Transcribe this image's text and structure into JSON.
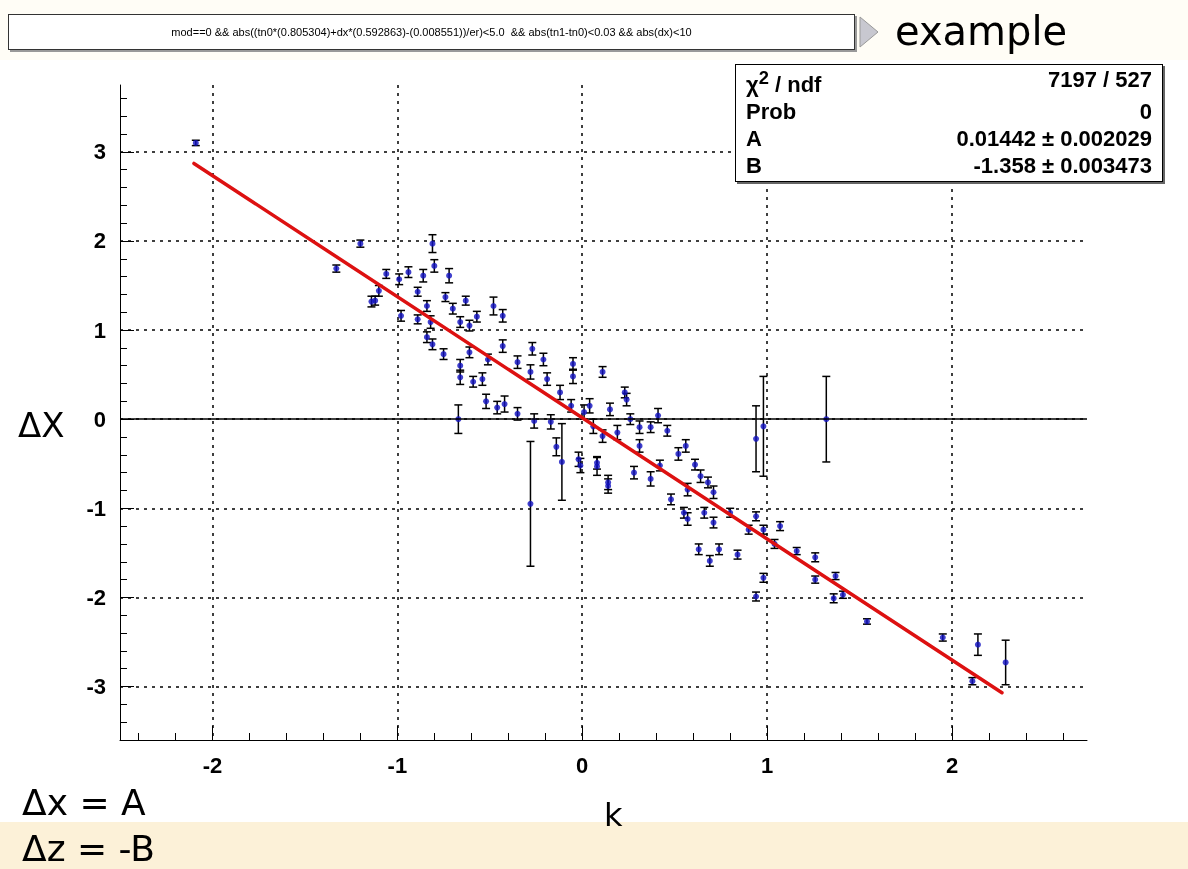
{
  "chart_data": {
    "type": "scatter",
    "title": "mod==0 && abs((tn0*(0.805304)+dx*(0.592863)-(0.008551))/er)<5.0  && abs(tn1-tn0)<0.03 && abs(dx)<10",
    "xlabel": "k",
    "ylabel": "ΔX",
    "annotations": [
      "example",
      "χ$^{2}$ / ndf",
      "7197 / 527",
      "Prob",
      "0",
      "A",
      "0.01442 ± 0.002029",
      "B",
      "-1.358 ± 0.003473",
      "Δx = A",
      "Δz = -B"
    ],
    "xlim": [
      -2.5,
      2.73
    ],
    "xticks": [
      -2,
      -1,
      0,
      1,
      2
    ],
    "ylim": [
      -3.6,
      3.75
    ],
    "yticks": [
      -3,
      -2,
      -1,
      0,
      1,
      2,
      3
    ],
    "grid": true,
    "ref_lines": [
      {
        "axis": "y",
        "value": 0,
        "color": "#000000",
        "line_style": "solid"
      }
    ],
    "series": [
      {
        "color": "#1010c0",
        "marker": "circle",
        "x": [
          -2.09,
          -1.33,
          -1.2,
          -1.14,
          -1.12,
          -1.1,
          -1.06,
          -0.99,
          -0.94,
          -0.86,
          -0.81,
          -0.8,
          -0.72,
          -0.98,
          -0.89,
          -0.89,
          -0.84,
          -0.82,
          -0.84,
          -0.81,
          -0.74,
          -0.7,
          -0.75,
          -0.66,
          -0.63,
          -0.48,
          -0.43,
          -0.57,
          -0.61,
          -0.66,
          -0.66,
          -0.59,
          -0.54,
          -0.52,
          -0.46,
          -0.42,
          -0.35,
          -0.26,
          -0.27,
          -0.17,
          -0.14,
          -0.02,
          0.08,
          0.14,
          -0.61,
          -0.51,
          -0.43,
          -0.35,
          -0.28,
          -0.19,
          -0.12,
          -0.06,
          0.01,
          0.06,
          0.11,
          -0.05,
          -0.21,
          -0.67,
          -0.28,
          -0.11,
          -0.05,
          0.11,
          0.23,
          0.24,
          0.26,
          0.31,
          0.37,
          0.41,
          0.46,
          0.52,
          0.56,
          0.61,
          0.64,
          0.42,
          0.31,
          0.37,
          0.28,
          0.14,
          0.08,
          -0.01,
          0.04,
          0.15,
          0.19,
          0.68,
          0.71,
          0.57,
          0.94,
          0.98,
          1.32,
          0.48,
          0.55,
          0.57,
          0.63,
          0.69,
          0.74,
          0.84,
          0.66,
          0.71,
          0.8,
          0.9,
          0.94,
          0.98,
          1.07,
          1.04,
          1.16,
          1.26,
          0.98,
          0.94,
          1.26,
          1.37,
          1.41,
          1.54,
          1.95,
          2.14,
          2.11,
          2.29,
          1.36
        ],
        "values": [
          3.1,
          1.69,
          1.97,
          1.32,
          1.33,
          1.44,
          1.63,
          1.57,
          1.65,
          1.61,
          1.97,
          1.72,
          1.61,
          1.16,
          1.43,
          1.12,
          1.27,
          1.09,
          0.92,
          0.84,
          1.37,
          1.24,
          0.73,
          1.09,
          1.33,
          1.27,
          1.16,
          1.15,
          1.05,
          0.6,
          0.47,
          0.42,
          0.45,
          0.2,
          0.13,
          0.17,
          0.06,
          -0.02,
          0.79,
          -0.03,
          -0.31,
          -0.45,
          -0.53,
          -0.71,
          0.75,
          0.67,
          0.82,
          0.64,
          0.53,
          0.45,
          0.3,
          0.15,
          0.08,
          -0.08,
          -0.19,
          0.48,
          0.67,
          0,
          -0.95,
          -0.48,
          0.62,
          0.53,
          0.3,
          0.22,
          0,
          -0.09,
          -0.09,
          0.04,
          -0.13,
          -0.39,
          -0.3,
          -0.51,
          -0.64,
          -0.52,
          -0.3,
          -0.67,
          -0.6,
          -0.75,
          -0.49,
          -0.52,
          0.15,
          0.11,
          -0.15,
          -0.71,
          -0.82,
          -0.79,
          -0.22,
          -0.08,
          0,
          -0.9,
          -1.05,
          -1.12,
          -1.46,
          -1.59,
          -1.46,
          -1.52,
          -1.05,
          -1.16,
          -1.05,
          -1.24,
          -1.09,
          -1.24,
          -1.2,
          -1.4,
          -1.48,
          -1.55,
          -1.78,
          -1.99,
          -1.8,
          -1.76,
          -1.97,
          -2.27,
          -2.45,
          -2.53,
          -2.94,
          -2.73,
          -2.01
        ],
        "errors": [
          0.03,
          0.04,
          0.04,
          0.06,
          0.05,
          0.06,
          0.05,
          0.06,
          0.06,
          0.07,
          0.1,
          0.07,
          0.08,
          0.06,
          0.05,
          0.05,
          0.06,
          0.07,
          0.06,
          0.06,
          0.05,
          0.06,
          0.06,
          0.06,
          0.05,
          0.1,
          0.07,
          0.06,
          0.06,
          0.07,
          0.08,
          0.06,
          0.07,
          0.08,
          0.07,
          0.09,
          0.07,
          0.08,
          0.07,
          0.08,
          0.1,
          0.08,
          0.1,
          0.08,
          0.06,
          0.06,
          0.07,
          0.07,
          0.08,
          0.07,
          0.08,
          0.07,
          0.08,
          0.08,
          0.07,
          0.08,
          0.07,
          0.16,
          0.7,
          0.43,
          0.07,
          0.06,
          0.06,
          0.07,
          0.06,
          0.07,
          0.06,
          0.08,
          0.06,
          0.07,
          0.07,
          0.06,
          0.07,
          0.06,
          0.07,
          0.08,
          0.07,
          0.08,
          0.07,
          0.08,
          0.08,
          0.07,
          0.08,
          0.06,
          0.07,
          0.07,
          0.37,
          0.56,
          0.48,
          0.06,
          0.06,
          0.07,
          0.06,
          0.06,
          0.06,
          0.05,
          0.06,
          0.06,
          0.05,
          0.05,
          0.05,
          0.05,
          0.05,
          0.05,
          0.04,
          0.05,
          0.05,
          0.05,
          0.04,
          0.04,
          0.04,
          0.03,
          0.04,
          0.12,
          0.04,
          0.25,
          0.05
        ]
      },
      {
        "type": "line",
        "color": "#dd1111",
        "marker": "none",
        "line_style": "solid",
        "x": [
          -2.1,
          2.27
        ],
        "values": [
          2.87,
          -3.07
        ]
      }
    ]
  }
}
